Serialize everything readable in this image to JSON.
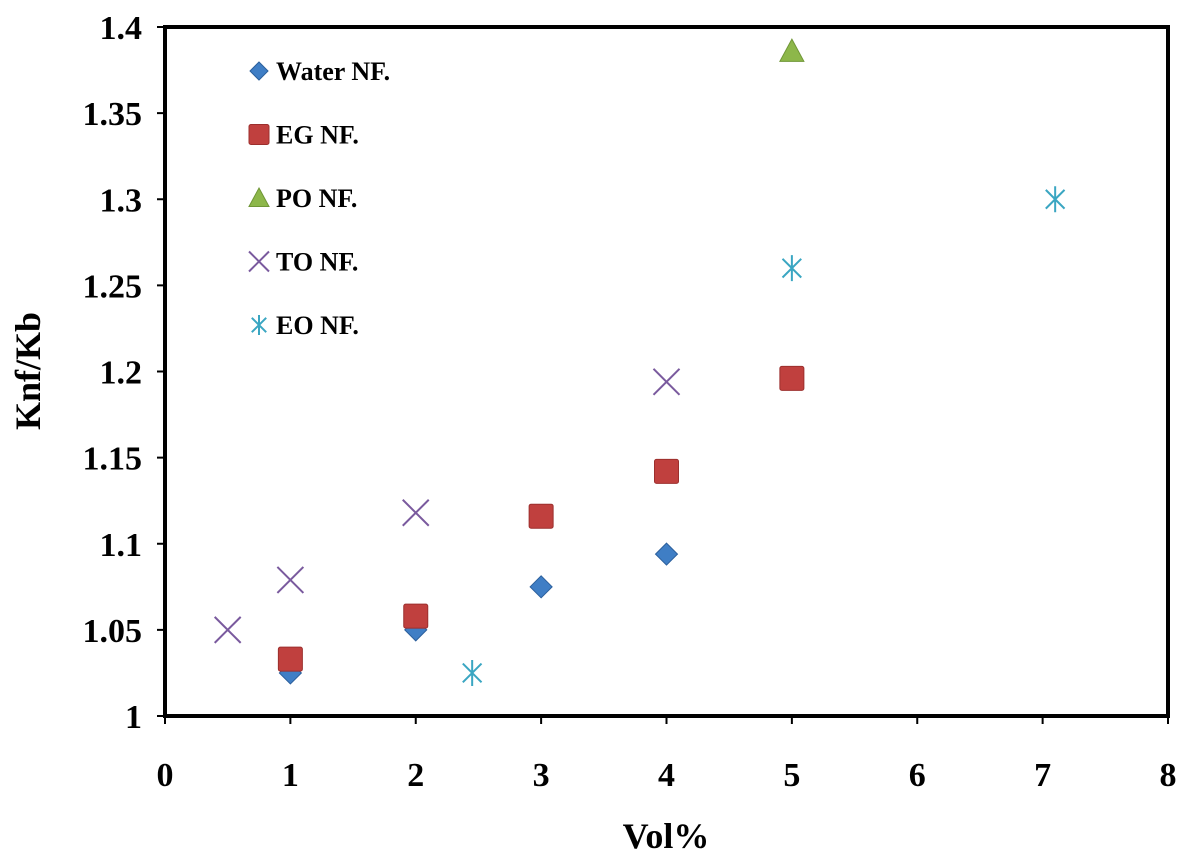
{
  "chart_data": {
    "type": "scatter",
    "xlabel": "Vol%",
    "ylabel": "Knf/Kb",
    "xlim": [
      0,
      8
    ],
    "ylim": [
      1,
      1.4
    ],
    "x_ticks": [
      "0",
      "1",
      "2",
      "3",
      "4",
      "5",
      "6",
      "7",
      "8"
    ],
    "y_ticks": [
      "1",
      "1.05",
      "1.1",
      "1.15",
      "1.2",
      "1.25",
      "1.3",
      "1.35",
      "1.4"
    ],
    "grid": false,
    "legend_position": "top-left",
    "series": [
      {
        "name": "Water NF.",
        "marker": "diamond",
        "color": "#3F7EC5",
        "points": [
          {
            "x": 1,
            "y": 1.025
          },
          {
            "x": 2,
            "y": 1.05
          },
          {
            "x": 3,
            "y": 1.075
          },
          {
            "x": 4,
            "y": 1.094
          }
        ]
      },
      {
        "name": "EG NF.",
        "marker": "square",
        "color": "#C0403E",
        "points": [
          {
            "x": 1,
            "y": 1.033
          },
          {
            "x": 2,
            "y": 1.058
          },
          {
            "x": 3,
            "y": 1.116
          },
          {
            "x": 4,
            "y": 1.142
          },
          {
            "x": 5,
            "y": 1.196
          }
        ]
      },
      {
        "name": "PO NF.",
        "marker": "triangle",
        "color": "#8DB74A",
        "points": [
          {
            "x": 5,
            "y": 1.386
          }
        ]
      },
      {
        "name": "TO NF.",
        "marker": "x",
        "color": "#7A5A9E",
        "points": [
          {
            "x": 0.5,
            "y": 1.05
          },
          {
            "x": 1,
            "y": 1.079
          },
          {
            "x": 2,
            "y": 1.118
          },
          {
            "x": 4,
            "y": 1.194
          }
        ]
      },
      {
        "name": "EO NF.",
        "marker": "asterisk",
        "color": "#3AA6C2",
        "points": [
          {
            "x": 2.45,
            "y": 1.025
          },
          {
            "x": 5,
            "y": 1.26
          },
          {
            "x": 7.1,
            "y": 1.3
          }
        ]
      }
    ]
  }
}
